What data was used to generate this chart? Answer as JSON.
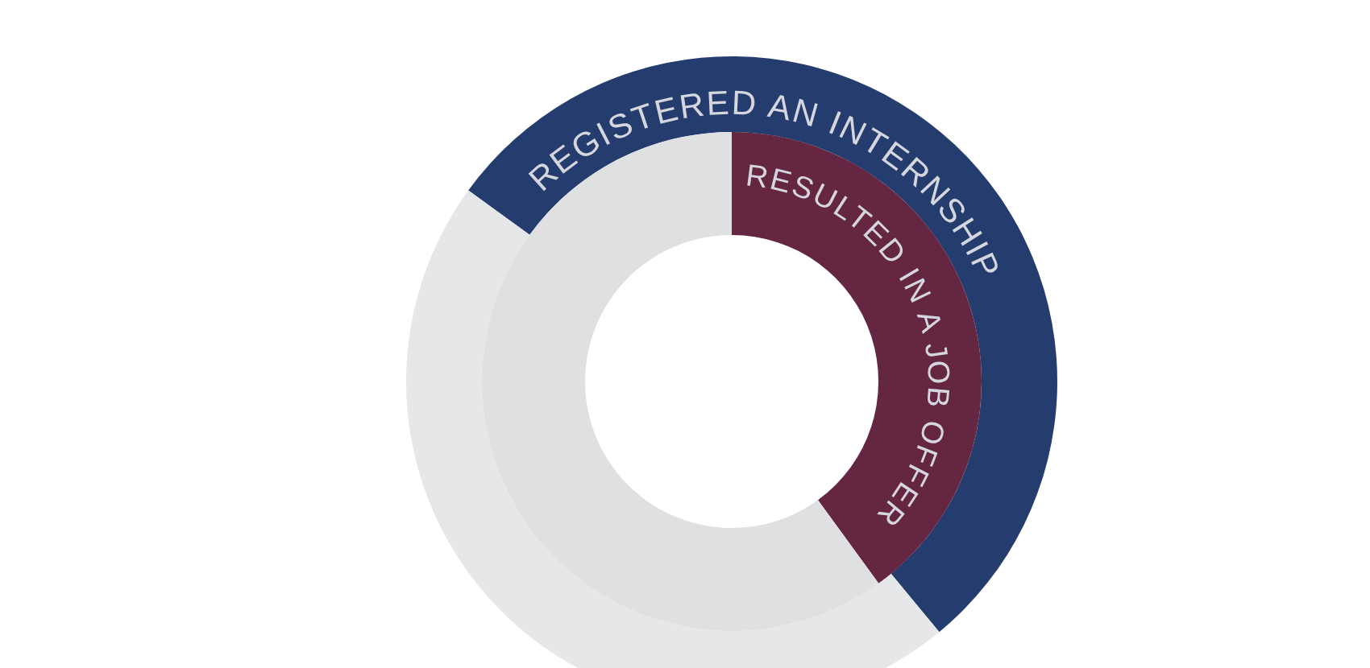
{
  "chart_data": {
    "type": "donut",
    "series": [
      {
        "name": "REGISTERED AN INTERNSHIP",
        "values": [
          54,
          46
        ],
        "colors": [
          "#253d6e",
          "#e6e7e8"
        ]
      },
      {
        "name": "RESULTED IN A JOB OFFER",
        "values": [
          40,
          60
        ],
        "colors": [
          "#652642",
          "#dfe0e2"
        ]
      }
    ]
  }
}
